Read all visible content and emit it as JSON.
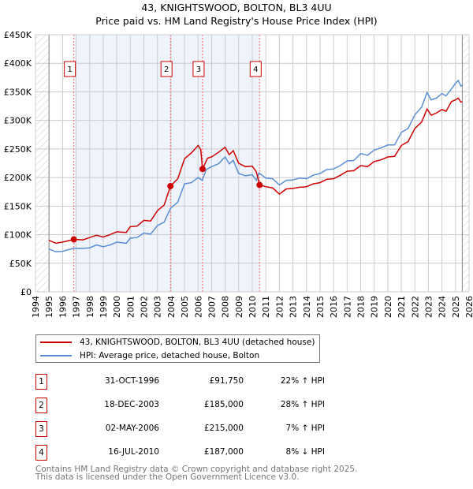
{
  "header": {
    "title": "43, KNIGHTSWOOD, BOLTON, BL3 4UU",
    "subtitle": "Price paid vs. HM Land Registry's House Price Index (HPI)"
  },
  "chart_data": {
    "type": "line",
    "title": "43, KNIGHTSWOOD, BOLTON, BL3 4UU",
    "subtitle": "Price paid vs. HM Land Registry's House Price Index (HPI)",
    "xlim": [
      1994,
      2026
    ],
    "ylim": [
      0,
      450000
    ],
    "x_ticks": [
      "1994",
      "1995",
      "1996",
      "1997",
      "1998",
      "1999",
      "2000",
      "2001",
      "2002",
      "2003",
      "2004",
      "2005",
      "2006",
      "2007",
      "2008",
      "2009",
      "2010",
      "2011",
      "2012",
      "2013",
      "2014",
      "2015",
      "2016",
      "2017",
      "2018",
      "2019",
      "2020",
      "2021",
      "2022",
      "2023",
      "2024",
      "2025",
      "2026"
    ],
    "y_ticks": [
      {
        "v": 0,
        "l": "£0"
      },
      {
        "v": 50000,
        "l": "£50K"
      },
      {
        "v": 100000,
        "l": "£100K"
      },
      {
        "v": 150000,
        "l": "£150K"
      },
      {
        "v": 200000,
        "l": "£200K"
      },
      {
        "v": 250000,
        "l": "£250K"
      },
      {
        "v": 300000,
        "l": "£300K"
      },
      {
        "v": 350000,
        "l": "£350K"
      },
      {
        "v": 400000,
        "l": "£400K"
      },
      {
        "v": 450000,
        "l": "£450K"
      }
    ],
    "grid": true,
    "colors": {
      "property": "#cc0000",
      "hpi": "#5b8fd4",
      "shade": "#eef3fc",
      "sale_line": "#ff6666"
    },
    "series": [
      {
        "name": "43, KNIGHTSWOOD, BOLTON, BL3 4UU (detached house)",
        "color": "#cc0000",
        "x": [
          1995,
          1995.5,
          1996,
          1996.83,
          1997.5,
          1998,
          1998.5,
          1999,
          1999.5,
          2000,
          2000.7,
          2001,
          2001.5,
          2002,
          2002.5,
          2003,
          2003.5,
          2003.96,
          2004.5,
          2005,
          2005.5,
          2006,
          2006.2,
          2006.33,
          2006.7,
          2007,
          2007.5,
          2008,
          2008.3,
          2008.6,
          2009,
          2009.5,
          2010,
          2010.3,
          2010.54,
          2011,
          2011.5,
          2012,
          2012.5,
          2013,
          2013.5,
          2014,
          2014.5,
          2015,
          2015.5,
          2016,
          2016.5,
          2017,
          2017.5,
          2018,
          2018.5,
          2019,
          2019.5,
          2020,
          2020.5,
          2021,
          2021.5,
          2022,
          2022.5,
          2022.9,
          2023.2,
          2023.6,
          2024,
          2024.3,
          2024.7,
          2025,
          2025.2,
          2025.4,
          2025.5
        ],
        "y": [
          90,
          85,
          87,
          91.75,
          91,
          95,
          99,
          96,
          100,
          105,
          104,
          114,
          115,
          125,
          124,
          142,
          152,
          185,
          198,
          233,
          243,
          256,
          249,
          215,
          234,
          236,
          244,
          253,
          240,
          247,
          225,
          219,
          220,
          210,
          187,
          184,
          182,
          171,
          180,
          181,
          183,
          184,
          189,
          191,
          197,
          198,
          204,
          211,
          212,
          221,
          219,
          228,
          231,
          236,
          237,
          256,
          263,
          286,
          297,
          320,
          309,
          313,
          319,
          316,
          333,
          336,
          339,
          332,
          333
        ]
      },
      {
        "name": "HPI: Average price, detached house, Bolton",
        "color": "#5b8fd4",
        "x": [
          1995,
          1995.5,
          1996,
          1996.8,
          1997.5,
          1998,
          1998.5,
          1999,
          1999.5,
          2000,
          2000.7,
          2001,
          2001.5,
          2002,
          2002.5,
          2003,
          2003.5,
          2003.96,
          2004.5,
          2005,
          2005.5,
          2006,
          2006.3,
          2006.6,
          2007,
          2007.5,
          2008,
          2008.3,
          2008.6,
          2009,
          2009.5,
          2010,
          2010.3,
          2010.5,
          2011,
          2011.5,
          2012,
          2012.5,
          2013,
          2013.5,
          2014,
          2014.5,
          2015,
          2015.5,
          2016,
          2016.5,
          2017,
          2017.5,
          2018,
          2018.5,
          2019,
          2019.5,
          2020,
          2020.5,
          2021,
          2021.5,
          2022,
          2022.5,
          2022.9,
          2023.2,
          2023.6,
          2024,
          2024.3,
          2024.7,
          2025,
          2025.2,
          2025.4,
          2025.5
        ],
        "y": [
          75,
          70,
          71,
          76,
          76,
          77,
          82,
          79,
          82,
          87,
          85,
          94,
          95,
          103,
          101,
          116,
          122,
          146,
          157,
          189,
          191,
          200,
          195,
          214,
          219,
          224,
          236,
          224,
          230,
          207,
          203,
          205,
          195,
          208,
          199,
          198,
          187,
          195,
          196,
          199,
          198,
          204,
          207,
          214,
          215,
          221,
          229,
          230,
          242,
          239,
          248,
          252,
          257,
          257,
          279,
          286,
          310,
          323,
          349,
          336,
          339,
          347,
          343,
          355,
          365,
          370,
          360,
          362
        ]
      }
    ],
    "y_units": "thousands GBP",
    "sales": [
      {
        "n": "1",
        "x": 1996.83,
        "date": "31-OCT-1996",
        "price_value": 91750,
        "price": "£91,750",
        "pct": "22% ↑ HPI"
      },
      {
        "n": "2",
        "x": 2003.96,
        "date": "18-DEC-2003",
        "price_value": 185000,
        "price": "£185,000",
        "pct": "28% ↑ HPI"
      },
      {
        "n": "3",
        "x": 2006.33,
        "date": "02-MAY-2006",
        "price_value": 215000,
        "price": "£215,000",
        "pct": "7% ↑ HPI"
      },
      {
        "n": "4",
        "x": 2010.54,
        "date": "16-JUL-2010",
        "price_value": 187000,
        "price": "£187,000",
        "pct": "8% ↓ HPI"
      }
    ],
    "data_range": [
      1995,
      2025.5
    ]
  },
  "legend": {
    "property": "43, KNIGHTSWOOD, BOLTON, BL3 4UU (detached house)",
    "hpi": "HPI: Average price, detached house, Bolton"
  },
  "footer": {
    "line1": "Contains HM Land Registry data © Crown copyright and database right 2025.",
    "line2": "This data is licensed under the Open Government Licence v3.0."
  }
}
